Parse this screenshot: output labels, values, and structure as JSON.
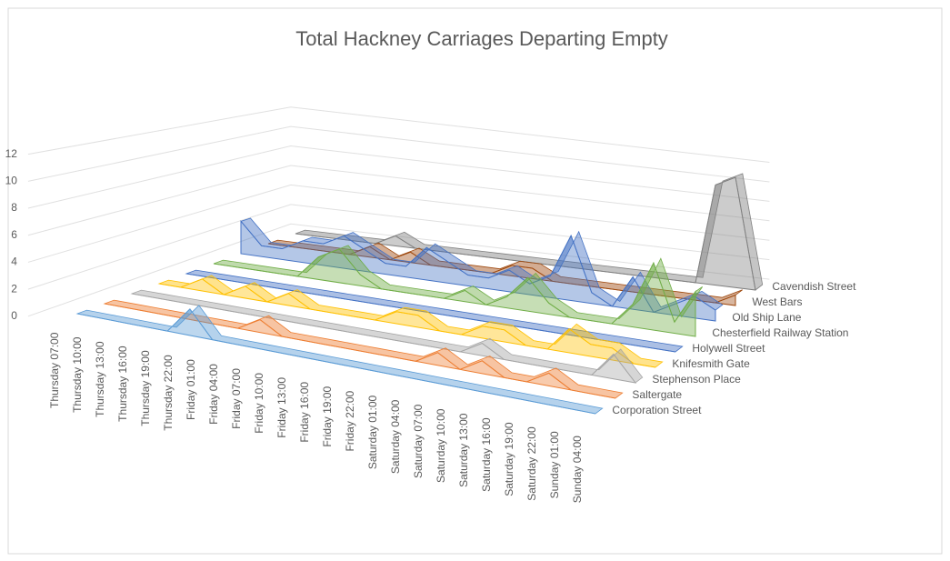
{
  "chart_data": {
    "type": "area3d",
    "title": "Total Hackney Carriages Departing Empty",
    "categories": [
      "Thursday 07:00",
      "Thursday 10:00",
      "Thursday 13:00",
      "Thursday 16:00",
      "Thursday 19:00",
      "Thursday 22:00",
      "Friday 01:00",
      "Friday 04:00",
      "Friday 07:00",
      "Friday 10:00",
      "Friday 13:00",
      "Friday 16:00",
      "Friday 19:00",
      "Friday 22:00",
      "Saturday 01:00",
      "Saturday 04:00",
      "Saturday 07:00",
      "Saturday 10:00",
      "Saturday 13:00",
      "Saturday 16:00",
      "Saturday 19:00",
      "Saturday 22:00",
      "Sunday 01:00",
      "Sunday 04:00"
    ],
    "ylim": [
      0,
      12
    ],
    "yticks": [
      0,
      2,
      4,
      6,
      8,
      10,
      12
    ],
    "series": [
      {
        "name": "Corporation Street",
        "color": "#5b9bd5",
        "values": [
          0,
          0,
          0,
          0,
          0,
          2,
          0,
          0,
          0,
          0,
          0,
          0,
          0,
          0,
          0,
          0,
          0,
          0,
          0,
          0,
          0,
          0,
          0,
          0
        ]
      },
      {
        "name": "Saltergate",
        "color": "#ed7d31",
        "values": [
          0,
          0,
          0,
          0,
          0,
          0,
          0,
          1,
          0,
          0,
          0,
          0,
          0,
          0,
          0,
          1,
          0,
          1,
          0,
          0,
          1,
          0,
          0,
          0
        ]
      },
      {
        "name": "Stephenson Place",
        "color": "#a5a5a5",
        "values": [
          0,
          0,
          0,
          0,
          0,
          0,
          0,
          0,
          0,
          0,
          0,
          0,
          0,
          0,
          0,
          0,
          1,
          0,
          0,
          0,
          0,
          0,
          2,
          0
        ]
      },
      {
        "name": "Knifesmith Gate",
        "color": "#ffc000",
        "values": [
          0,
          0,
          1,
          0,
          1,
          0,
          1,
          0,
          0,
          0,
          0,
          1,
          1,
          0,
          0,
          1,
          1,
          0,
          0,
          2,
          1,
          1,
          0,
          0
        ]
      },
      {
        "name": "Holywell Street",
        "color": "#4472c4",
        "values": [
          0,
          0,
          0,
          0,
          0,
          0,
          0,
          0,
          0,
          0,
          0,
          0,
          0,
          0,
          0,
          0,
          0,
          0,
          0,
          0,
          0,
          0,
          0,
          0
        ]
      },
      {
        "name": "Chesterfield Railway Station",
        "color": "#70ad47",
        "values": [
          0,
          0,
          0,
          0,
          0,
          2,
          3,
          1,
          0,
          0,
          0,
          0,
          1,
          0,
          1,
          3,
          1,
          0,
          0,
          0,
          2,
          6,
          1,
          4
        ]
      },
      {
        "name": "Old Ship Lane",
        "color": "#4472c4",
        "values": [
          3,
          1,
          1,
          2,
          2,
          3,
          2,
          1,
          1,
          3,
          2,
          1,
          1,
          2,
          1,
          2,
          6,
          1,
          0,
          3,
          0,
          1,
          2,
          1
        ]
      },
      {
        "name": "West Bars",
        "color": "#9e480e",
        "values": [
          0,
          0,
          0,
          0,
          0,
          1,
          0,
          1,
          0,
          0,
          0,
          0,
          1,
          1,
          0,
          0,
          0,
          0,
          0,
          0,
          0,
          0,
          0,
          1
        ]
      },
      {
        "name": "Cavendish Street",
        "color": "#7f7f7f",
        "values": [
          0,
          0,
          0,
          0,
          0,
          1,
          0,
          0,
          0,
          0,
          0,
          0,
          0,
          0,
          0,
          0,
          0,
          0,
          0,
          0,
          0,
          10,
          11,
          0
        ]
      }
    ]
  }
}
